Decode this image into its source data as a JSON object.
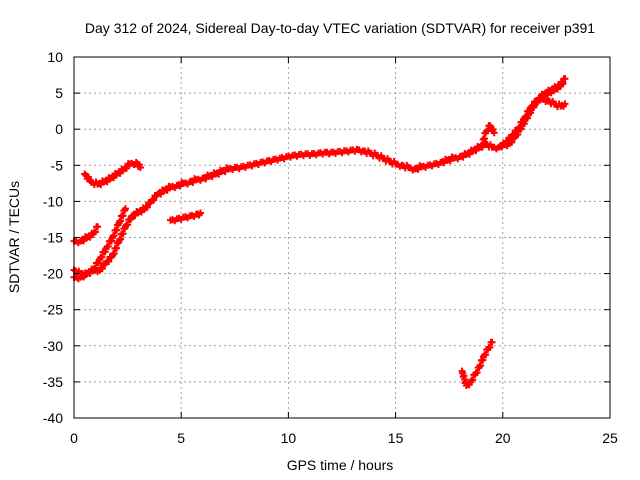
{
  "chart_data": {
    "type": "scatter",
    "title": "Day 312 of 2024, Sidereal Day-to-day VTEC variation (SDTVAR) for receiver p391",
    "xlabel": "GPS time / hours",
    "ylabel": "SDTVAR / TECUs",
    "xlim": [
      0,
      25
    ],
    "ylim": [
      -40,
      10
    ],
    "x_ticks": [
      0,
      5,
      10,
      15,
      20,
      25
    ],
    "y_ticks": [
      10,
      5,
      0,
      -5,
      -10,
      -15,
      -20,
      -25,
      -30,
      -35,
      -40
    ],
    "grid": true,
    "marker": "plus",
    "color": "#ff0000",
    "series": [
      {
        "x": [
          0.0,
          0.3,
          0.6,
          0.9,
          1.2,
          1.5,
          1.8,
          2.1,
          2.4,
          2.7,
          3.0,
          3.3,
          3.6,
          3.9,
          4.2,
          4.5,
          4.8,
          5.1,
          5.4,
          5.7,
          6.0,
          6.3,
          6.6,
          6.9,
          7.2,
          7.5,
          7.8,
          8.1,
          8.4,
          8.7,
          9.0,
          9.3,
          9.6,
          9.9,
          10.2,
          10.5,
          10.8,
          11.1,
          11.4,
          11.7,
          12.0,
          12.3,
          12.6,
          12.9,
          13.2,
          13.5,
          13.8,
          14.1,
          14.4,
          14.7,
          15.0,
          15.3,
          15.6,
          15.9,
          16.2,
          16.5,
          16.8,
          17.1,
          17.4,
          17.7,
          18.0,
          18.3,
          18.6,
          18.9,
          19.2,
          19.5,
          19.8,
          20.1,
          20.4,
          20.7,
          21.0,
          21.3,
          21.6,
          21.9,
          22.2,
          22.5,
          22.8
        ],
        "y": [
          -19.5,
          -20.0,
          -20.0,
          -19.5,
          -19.5,
          -18.5,
          -17.5,
          -15.5,
          -13.5,
          -12.0,
          -11.5,
          -11.0,
          -10.0,
          -9.0,
          -8.5,
          -8.0,
          -7.8,
          -7.5,
          -7.3,
          -7.0,
          -6.8,
          -6.5,
          -6.2,
          -5.8,
          -5.5,
          -5.3,
          -5.2,
          -5.0,
          -4.8,
          -4.6,
          -4.4,
          -4.2,
          -4.0,
          -3.8,
          -3.6,
          -3.5,
          -3.4,
          -3.4,
          -3.3,
          -3.2,
          -3.2,
          -3.1,
          -3.0,
          -2.9,
          -2.8,
          -3.0,
          -3.3,
          -3.6,
          -4.0,
          -4.4,
          -4.8,
          -5.0,
          -5.3,
          -5.5,
          -5.2,
          -5.0,
          -4.8,
          -4.6,
          -4.3,
          -4.0,
          -3.8,
          -3.5,
          -3.0,
          -2.5,
          -2.0,
          -2.5,
          -2.5,
          -2.0,
          -1.0,
          0.0,
          1.5,
          3.0,
          4.0,
          4.8,
          5.3,
          5.8,
          6.5
        ]
      },
      {
        "x": [
          0.0,
          0.3,
          0.6,
          0.9,
          1.2,
          1.5,
          1.8,
          2.1,
          2.4
        ],
        "y": [
          -20.5,
          -20.5,
          -20.0,
          -19.5,
          -18.0,
          -16.5,
          -15.0,
          -13.0,
          -11.0
        ]
      },
      {
        "x": [
          0.0,
          0.3,
          0.6,
          0.9,
          1.1
        ],
        "y": [
          -15.5,
          -15.5,
          -15.0,
          -14.5,
          -13.5
        ]
      },
      {
        "x": [
          0.5,
          0.8,
          1.1,
          1.4,
          1.7,
          2.0,
          2.3,
          2.6,
          2.9,
          3.1
        ],
        "y": [
          -6.2,
          -7.3,
          -7.6,
          -7.3,
          -6.8,
          -6.2,
          -5.6,
          -4.8,
          -4.6,
          -5.3
        ]
      },
      {
        "x": [
          4.5,
          4.8,
          5.1,
          5.4,
          5.7,
          5.9
        ],
        "y": [
          -12.6,
          -12.4,
          -12.2,
          -12.0,
          -11.8,
          -11.6
        ]
      },
      {
        "x": [
          18.1,
          18.3,
          18.5,
          18.7,
          18.9,
          19.1,
          19.3,
          19.5
        ],
        "y": [
          -33.5,
          -35.5,
          -35.0,
          -34.0,
          -33.0,
          -31.5,
          -30.5,
          -29.5
        ]
      },
      {
        "x": [
          19.0,
          19.2,
          19.4,
          19.6
        ],
        "y": [
          -2.5,
          -0.5,
          0.5,
          -0.5
        ]
      },
      {
        "x": [
          20.0,
          20.3,
          20.6,
          20.9,
          21.2,
          21.5,
          21.8,
          22.1,
          22.4,
          22.7,
          22.9
        ],
        "y": [
          -2.2,
          -2.0,
          -1.0,
          0.5,
          2.0,
          3.5,
          4.5,
          5.0,
          5.5,
          6.0,
          7.0
        ]
      },
      {
        "x": [
          21.8,
          22.1,
          22.4,
          22.7,
          22.9
        ],
        "y": [
          4.2,
          4.0,
          3.5,
          3.2,
          3.5
        ]
      }
    ]
  }
}
